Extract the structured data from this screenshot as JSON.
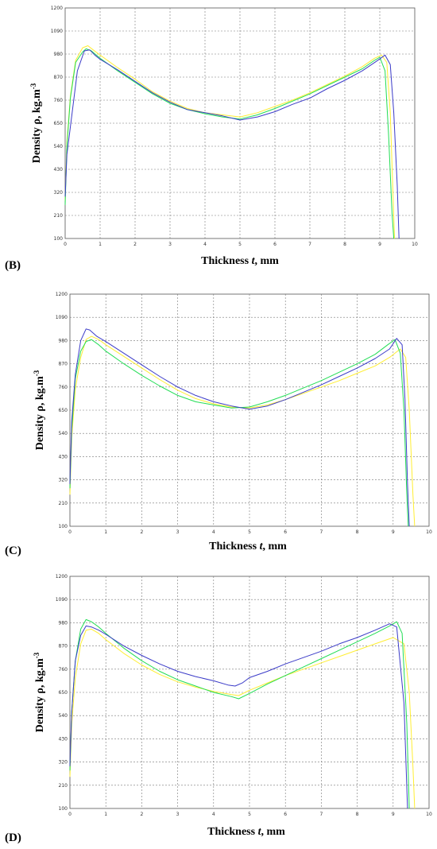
{
  "chart_data": [
    {
      "panel_label": "(B)",
      "type": "line",
      "xlabel_main": "Thickness ",
      "xlabel_var": "t",
      "xlabel_unit": ", mm",
      "ylabel": "Density ρ, kg.m",
      "ylabel_sup": "-3",
      "xlim": [
        0,
        10
      ],
      "ylim": [
        100,
        1200
      ],
      "xticks": [
        "0",
        "1",
        "2",
        "3",
        "4",
        "5",
        "6",
        "7",
        "8",
        "9",
        "10"
      ],
      "yticks": [
        "100",
        "210",
        "320",
        "430",
        "540",
        "650",
        "760",
        "870",
        "980",
        "1090",
        "1200"
      ],
      "grid": true,
      "series": [
        {
          "color": "#ffee33",
          "x": [
            0,
            0.05,
            0.15,
            0.3,
            0.5,
            0.65,
            0.8,
            1.0,
            1.5,
            2.0,
            2.5,
            3.0,
            3.5,
            4.0,
            4.5,
            5.0,
            5.5,
            6.0,
            6.5,
            7.0,
            7.5,
            8.0,
            8.5,
            8.85,
            9.05,
            9.2,
            9.3,
            9.38,
            9.42
          ],
          "y": [
            280,
            560,
            780,
            950,
            1010,
            1020,
            1000,
            975,
            915,
            860,
            800,
            755,
            720,
            700,
            690,
            680,
            700,
            730,
            760,
            795,
            835,
            875,
            920,
            960,
            975,
            940,
            700,
            300,
            100
          ]
        },
        {
          "color": "#22dd55",
          "x": [
            0,
            0.05,
            0.15,
            0.3,
            0.5,
            0.6,
            0.75,
            1.0,
            1.5,
            2.0,
            2.5,
            3.0,
            3.5,
            4.0,
            4.5,
            5.0,
            5.5,
            6.0,
            6.5,
            7.0,
            7.5,
            8.0,
            8.5,
            8.85,
            9.0,
            9.15,
            9.25,
            9.35,
            9.4
          ],
          "y": [
            260,
            540,
            770,
            940,
            990,
            1005,
            995,
            960,
            900,
            845,
            790,
            745,
            715,
            695,
            680,
            670,
            690,
            720,
            755,
            790,
            830,
            870,
            910,
            950,
            965,
            900,
            600,
            220,
            100
          ]
        },
        {
          "color": "#3b3bc8",
          "x": [
            0,
            0.05,
            0.2,
            0.35,
            0.55,
            0.7,
            0.85,
            1.0,
            1.5,
            2.0,
            2.5,
            3.0,
            3.5,
            4.0,
            4.5,
            5.0,
            5.5,
            6.0,
            6.5,
            7.0,
            7.5,
            8.0,
            8.5,
            8.9,
            9.15,
            9.3,
            9.4,
            9.5,
            9.55
          ],
          "y": [
            300,
            500,
            700,
            900,
            995,
            1000,
            975,
            955,
            905,
            850,
            795,
            750,
            715,
            700,
            685,
            665,
            680,
            705,
            740,
            770,
            815,
            855,
            900,
            945,
            975,
            930,
            700,
            350,
            100
          ]
        }
      ]
    },
    {
      "panel_label": "(C)",
      "type": "line",
      "xlabel_main": "Thickness ",
      "xlabel_var": "t",
      "xlabel_unit": ", mm",
      "ylabel": "Density ρ, kg.m",
      "ylabel_sup": "-3",
      "xlim": [
        0,
        10
      ],
      "ylim": [
        100,
        1200
      ],
      "xticks": [
        "0",
        "1",
        "2",
        "3",
        "4",
        "5",
        "6",
        "7",
        "8",
        "9",
        "10"
      ],
      "yticks": [
        "100",
        "210",
        "320",
        "430",
        "540",
        "650",
        "760",
        "870",
        "980",
        "1090",
        "1200"
      ],
      "grid": true,
      "series": [
        {
          "color": "#ffee33",
          "x": [
            0,
            0.05,
            0.15,
            0.3,
            0.45,
            0.6,
            0.8,
            1.0,
            1.5,
            2.0,
            2.5,
            3.0,
            3.5,
            4.0,
            4.5,
            5.0,
            5.5,
            6.0,
            6.5,
            7.0,
            7.5,
            8.0,
            8.5,
            8.9,
            9.2,
            9.35,
            9.45,
            9.55,
            9.6
          ],
          "y": [
            250,
            520,
            750,
            900,
            985,
            1000,
            985,
            960,
            905,
            850,
            795,
            745,
            705,
            680,
            665,
            660,
            675,
            700,
            730,
            760,
            790,
            825,
            860,
            900,
            940,
            900,
            650,
            250,
            100
          ]
        },
        {
          "color": "#22dd55",
          "x": [
            0,
            0.05,
            0.15,
            0.3,
            0.45,
            0.6,
            0.8,
            1.0,
            1.5,
            2.0,
            2.5,
            3.0,
            3.5,
            4.0,
            4.5,
            5.0,
            5.5,
            6.0,
            6.5,
            7.0,
            7.5,
            8.0,
            8.5,
            8.85,
            9.05,
            9.2,
            9.3,
            9.38,
            9.42
          ],
          "y": [
            280,
            560,
            800,
            930,
            975,
            985,
            960,
            930,
            870,
            815,
            765,
            720,
            690,
            675,
            660,
            665,
            690,
            720,
            755,
            790,
            830,
            870,
            915,
            960,
            985,
            920,
            650,
            250,
            100
          ]
        },
        {
          "color": "#3b3bc8",
          "x": [
            0,
            0.05,
            0.15,
            0.3,
            0.45,
            0.55,
            0.75,
            1.0,
            1.5,
            2.0,
            2.5,
            3.0,
            3.5,
            4.0,
            4.5,
            5.0,
            5.5,
            6.0,
            6.5,
            7.0,
            7.5,
            8.0,
            8.5,
            8.9,
            9.1,
            9.25,
            9.33,
            9.4,
            9.45
          ],
          "y": [
            300,
            600,
            820,
            980,
            1035,
            1030,
            1000,
            975,
            920,
            865,
            810,
            760,
            720,
            690,
            670,
            655,
            670,
            700,
            735,
            770,
            810,
            850,
            895,
            940,
            990,
            960,
            700,
            300,
            100
          ]
        }
      ]
    },
    {
      "panel_label": "(D)",
      "type": "line",
      "xlabel_main": "Thickness ",
      "xlabel_var": "t",
      "xlabel_unit": ", mm",
      "ylabel": "Density ρ, kg.m",
      "ylabel_sup": "-3",
      "xlim": [
        0,
        10
      ],
      "ylim": [
        100,
        1200
      ],
      "xticks": [
        "0",
        "1",
        "2",
        "3",
        "4",
        "5",
        "6",
        "7",
        "8",
        "9",
        "10"
      ],
      "yticks": [
        "100",
        "210",
        "320",
        "430",
        "540",
        "650",
        "760",
        "870",
        "980",
        "1090",
        "1200"
      ],
      "grid": true,
      "series": [
        {
          "color": "#ffee33",
          "x": [
            0,
            0.05,
            0.15,
            0.3,
            0.45,
            0.6,
            0.8,
            1.0,
            1.5,
            2.0,
            2.5,
            3.0,
            3.5,
            4.0,
            4.5,
            4.7,
            5.0,
            5.5,
            6.0,
            6.5,
            7.0,
            7.5,
            8.0,
            8.5,
            9.0,
            9.3,
            9.45,
            9.55,
            9.6
          ],
          "y": [
            250,
            500,
            720,
            880,
            945,
            950,
            930,
            900,
            835,
            780,
            735,
            700,
            675,
            655,
            640,
            635,
            660,
            695,
            730,
            760,
            790,
            820,
            850,
            880,
            910,
            880,
            650,
            300,
            100
          ]
        },
        {
          "color": "#22dd55",
          "x": [
            0,
            0.05,
            0.15,
            0.3,
            0.45,
            0.6,
            0.8,
            1.0,
            1.5,
            2.0,
            2.5,
            3.0,
            3.5,
            4.0,
            4.5,
            4.7,
            5.0,
            5.5,
            6.0,
            6.5,
            7.0,
            7.5,
            8.0,
            8.5,
            8.9,
            9.1,
            9.25,
            9.38,
            9.45
          ],
          "y": [
            280,
            560,
            800,
            950,
            995,
            985,
            960,
            930,
            860,
            800,
            750,
            710,
            680,
            650,
            630,
            620,
            645,
            690,
            730,
            770,
            810,
            850,
            890,
            930,
            965,
            985,
            930,
            500,
            100
          ]
        },
        {
          "color": "#3b3bc8",
          "x": [
            0,
            0.05,
            0.15,
            0.3,
            0.45,
            0.6,
            0.8,
            1.0,
            1.5,
            2.0,
            2.5,
            3.0,
            3.5,
            4.0,
            4.4,
            4.6,
            4.8,
            5.0,
            5.5,
            6.0,
            6.5,
            7.0,
            7.5,
            8.0,
            8.5,
            8.9,
            9.1,
            9.3,
            9.4
          ],
          "y": [
            300,
            560,
            800,
            920,
            965,
            960,
            945,
            925,
            870,
            825,
            785,
            750,
            725,
            705,
            685,
            680,
            695,
            720,
            750,
            785,
            815,
            845,
            880,
            910,
            945,
            975,
            960,
            600,
            100
          ]
        }
      ]
    }
  ]
}
